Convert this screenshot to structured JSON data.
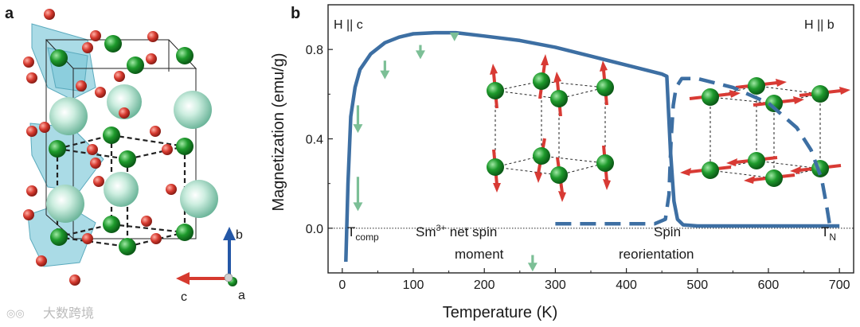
{
  "panels": {
    "a": "a",
    "b": "b"
  },
  "watermark": "大数跨境",
  "structure": {
    "axes": {
      "b": "b",
      "c": "c",
      "a": "a"
    },
    "colors": {
      "oxygen": "#d63a2f",
      "iron": "#1e9a2c",
      "sm": "#a8dcc8",
      "polyhedra": "#7cc8d8",
      "axis_b": "#2457a6",
      "axis_c": "#d63a2f",
      "axis_a": "#1e9a2c"
    }
  },
  "annotations": {
    "h_c": "H || c",
    "h_b": "H || b",
    "t_comp_main": "T",
    "t_comp_sub": "comp",
    "sm_line1_pre": "Sm",
    "sm_line1_sup": "3+",
    "sm_line1_post": " net spin",
    "sm_line2": "moment",
    "spin_line1": "Spin",
    "spin_line2": "reorientation",
    "tn_main": "T",
    "tn_sub": "N"
  },
  "chart_data": {
    "type": "line",
    "xlabel": "Temperature (K)",
    "ylabel": "Magnetization (emu/g)",
    "xlim": [
      -20,
      720
    ],
    "ylim": [
      -0.2,
      1.0
    ],
    "xticks": [
      0,
      100,
      200,
      300,
      400,
      500,
      600,
      700
    ],
    "yticks": [
      0.0,
      0.4,
      0.8
    ],
    "ytick_labels": [
      "0.0",
      "0.4",
      "0.8"
    ],
    "zero_line": "dotted",
    "colors": {
      "line": "#3d6fa3",
      "arrow": "#7cbf96",
      "spin": "#d83a34"
    },
    "series": [
      {
        "style": "solid",
        "x": [
          5,
          8,
          12,
          18,
          25,
          40,
          60,
          80,
          100,
          130,
          160,
          200,
          250,
          300,
          350,
          400,
          450,
          457,
          462,
          467,
          472,
          480,
          500,
          550,
          600,
          650,
          700
        ],
        "y": [
          -0.15,
          0.2,
          0.5,
          0.63,
          0.71,
          0.78,
          0.83,
          0.855,
          0.87,
          0.875,
          0.875,
          0.86,
          0.84,
          0.81,
          0.77,
          0.73,
          0.69,
          0.68,
          0.35,
          0.12,
          0.04,
          0.015,
          0.01,
          0.01,
          0.01,
          0.01,
          0.01
        ]
      },
      {
        "style": "dashed",
        "x": [
          300,
          350,
          400,
          440,
          455,
          460,
          463,
          466,
          470,
          478,
          500,
          550,
          600,
          640,
          660,
          675,
          682,
          686
        ],
        "y": [
          0.02,
          0.02,
          0.02,
          0.02,
          0.04,
          0.15,
          0.4,
          0.55,
          0.63,
          0.67,
          0.67,
          0.63,
          0.56,
          0.45,
          0.35,
          0.22,
          0.1,
          0.02
        ]
      }
    ],
    "arrows": [
      {
        "x": 22,
        "y_top": 0.55,
        "y_bottom": 0.43
      },
      {
        "x": 22,
        "y_top": 0.23,
        "y_bottom": 0.08
      },
      {
        "x": 60,
        "y_top": 0.75,
        "y_bottom": 0.67
      },
      {
        "x": 110,
        "y_top": 0.82,
        "y_bottom": 0.76
      },
      {
        "x": 158,
        "y_top": 0.87,
        "y_bottom": 0.84
      },
      {
        "x": 268,
        "y_top": -0.12,
        "y_bottom": -0.19
      }
    ]
  }
}
